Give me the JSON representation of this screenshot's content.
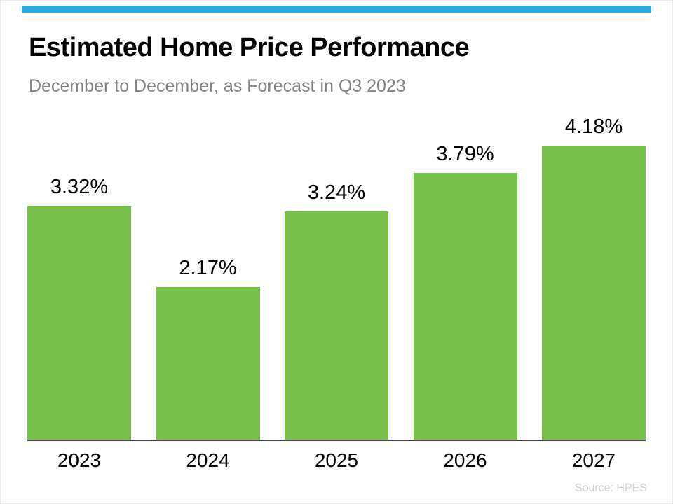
{
  "title": "Estimated Home Price Performance",
  "subtitle": "December to December, as Forecast in Q3 2023",
  "source_note": "Source: HPES",
  "colors": {
    "accent": "#2BAAE1",
    "bar": "#77C04A",
    "subtitle_gray": "#808285",
    "source_gray": "#CFCFCF"
  },
  "chart_data": {
    "type": "bar",
    "title": "Estimated Home Price Performance",
    "subtitle": "December to December, as Forecast in Q3 2023",
    "categories": [
      "2023",
      "2024",
      "2025",
      "2026",
      "2027"
    ],
    "values": [
      3.32,
      2.17,
      3.24,
      3.79,
      4.18
    ],
    "value_labels": [
      "3.32%",
      "2.17%",
      "3.24%",
      "3.79%",
      "4.18%"
    ],
    "unit": "%",
    "xlabel": "",
    "ylabel": "",
    "ylim": [
      0,
      4.5
    ],
    "grid": false,
    "legend": "none",
    "bar_color": "#77C04A"
  }
}
